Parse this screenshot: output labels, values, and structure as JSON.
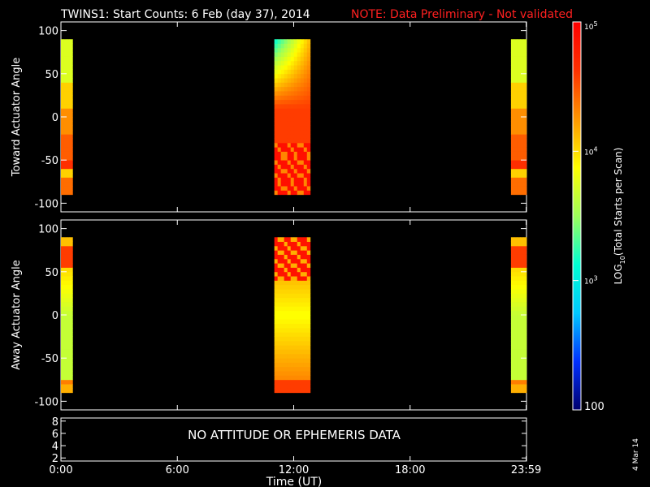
{
  "header": {
    "title": "TWINS1: Start Counts:  6 Feb (day  37), 2014",
    "note": "NOTE: Data Preliminary - Not validated",
    "note_color": "#ff2020"
  },
  "footer": {
    "date_stamp": "4 Mar 14"
  },
  "chart_data": [
    {
      "type": "heatmap",
      "ylabel": "Toward Actuator Angle",
      "ylim": [
        -110,
        110
      ],
      "yticks": [
        "100",
        "50",
        "0",
        "-50",
        "-100"
      ],
      "ytick_values": [
        100,
        50,
        0,
        -50,
        -100
      ],
      "xlim_hours": [
        0,
        24
      ],
      "xticks": [
        "0:00",
        "6:00",
        "12:00",
        "18:00",
        "23:59"
      ],
      "xtick_values": [
        0,
        6,
        12,
        18,
        23.983
      ],
      "angle_range": [
        -90,
        90
      ],
      "data_intervals_hours": [
        [
          0.0,
          0.6
        ],
        [
          11.0,
          12.85
        ],
        [
          23.2,
          24.0
        ]
      ]
    },
    {
      "type": "heatmap",
      "ylabel": "Away Actuator Angle",
      "ylim": [
        -110,
        110
      ],
      "yticks": [
        "100",
        "50",
        "0",
        "-50",
        "-100"
      ],
      "ytick_values": [
        100,
        50,
        0,
        -50,
        -100
      ],
      "xlim_hours": [
        0,
        24
      ],
      "xticks": [
        "0:00",
        "6:00",
        "12:00",
        "18:00",
        "23:59"
      ],
      "xtick_values": [
        0,
        6,
        12,
        18,
        23.983
      ],
      "angle_range": [
        -90,
        90
      ],
      "data_intervals_hours": [
        [
          0.0,
          0.6
        ],
        [
          11.0,
          12.85
        ],
        [
          23.2,
          24.0
        ]
      ]
    },
    {
      "type": "line",
      "yticks": [
        "8",
        "6",
        "4",
        "2"
      ],
      "ytick_values": [
        8,
        6,
        4,
        2
      ],
      "ylim": [
        1.5,
        8.5
      ],
      "message": "NO ATTITUDE OR EPHEMERIS DATA",
      "xticks": [
        "0:00",
        "6:00",
        "12:00",
        "18:00",
        "23:59"
      ],
      "xtick_values": [
        0,
        6,
        12,
        18,
        23.983
      ],
      "xlabel": "Time (UT)"
    }
  ],
  "colorbar": {
    "label": "LOG",
    "label_sub": "10",
    "label_rest": "(Total Starts per Scan)",
    "scale": "log",
    "range": [
      100,
      100000
    ],
    "ticks": [
      {
        "value": 100,
        "text": "100"
      },
      {
        "value": 1000,
        "base": "10",
        "exp": "3"
      },
      {
        "value": 10000,
        "base": "10",
        "exp": "4"
      },
      {
        "value": 100000,
        "base": "10",
        "exp": "5"
      }
    ],
    "colors": [
      "#00006e",
      "#0030ff",
      "#00c8ff",
      "#00ffd2",
      "#9dff5a",
      "#ffff00",
      "#ff9600",
      "#ff3000",
      "#ff0000"
    ]
  }
}
